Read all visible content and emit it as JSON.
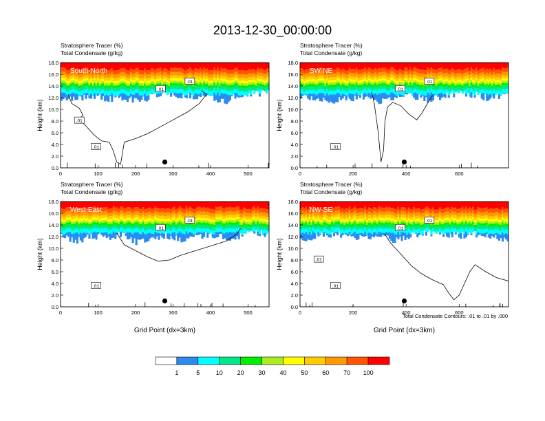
{
  "figure": {
    "title": "2013-12-30_00:00:00",
    "footnote": "Total Condensate Contours: .01 to .01 by .000"
  },
  "chart_data": [
    {
      "type": "heatmap",
      "panel_label": "South-North",
      "subtitle_line1": "Stratosphere Tracer   (%)",
      "subtitle_line2": "Total Condensate   (g/kg)",
      "ylabel": "Height (km)",
      "xlabel": "",
      "xlim": [
        0,
        556
      ],
      "ylim": [
        0,
        18
      ],
      "xticks": [
        0,
        100,
        200,
        300,
        400,
        500
      ],
      "yticks": [
        "0.0",
        "2.0",
        "4.0",
        "6.0",
        "8.0",
        "10.0",
        "12.0",
        "14.0",
        "16.0",
        "18.0"
      ],
      "marker_x": 278,
      "marker_y": 1.0,
      "contour_labels": [
        ".01",
        ".01",
        ".01",
        ".01"
      ],
      "tracer_profile": [
        {
          "x": 0,
          "bottom": 11.8
        },
        {
          "x": 40,
          "bottom": 11.6
        },
        {
          "x": 80,
          "bottom": 12.4
        },
        {
          "x": 120,
          "bottom": 11.8
        },
        {
          "x": 160,
          "bottom": 12.0
        },
        {
          "x": 200,
          "bottom": 11.4
        },
        {
          "x": 240,
          "bottom": 12.2
        },
        {
          "x": 280,
          "bottom": 12.6
        },
        {
          "x": 320,
          "bottom": 12.4
        },
        {
          "x": 360,
          "bottom": 12.2
        },
        {
          "x": 400,
          "bottom": 12.0
        },
        {
          "x": 440,
          "bottom": 11.4
        },
        {
          "x": 480,
          "bottom": 12.6
        },
        {
          "x": 520,
          "bottom": 12.8
        },
        {
          "x": 556,
          "bottom": 12.6
        }
      ],
      "condensate_contour": [
        [
          20,
          12.6
        ],
        [
          30,
          11.0
        ],
        [
          50,
          10.2
        ],
        [
          60,
          9.0
        ],
        [
          50,
          8.4
        ],
        [
          70,
          7.0
        ],
        [
          90,
          5.6
        ],
        [
          110,
          4.6
        ],
        [
          130,
          4.4
        ],
        [
          140,
          3.0
        ],
        [
          150,
          1.0
        ],
        [
          160,
          0.6
        ],
        [
          170,
          4.4
        ],
        [
          200,
          5.0
        ],
        [
          230,
          5.8
        ],
        [
          260,
          6.8
        ],
        [
          300,
          8.2
        ],
        [
          340,
          9.6
        ],
        [
          370,
          11.0
        ],
        [
          390,
          12.6
        ],
        [
          375,
          13.2
        ]
      ]
    },
    {
      "type": "heatmap",
      "panel_label": "SW-NE",
      "subtitle_line1": "Stratosphere Tracer   (%)",
      "subtitle_line2": "Total Condensate   (g/kg)",
      "ylabel": "Height (km)",
      "xlabel": "",
      "xlim": [
        0,
        786
      ],
      "ylim": [
        0,
        18
      ],
      "xticks": [
        0,
        200,
        400,
        600
      ],
      "yticks": [
        "0.0",
        "2.0",
        "4.0",
        "6.0",
        "8.0",
        "10.0",
        "12.0",
        "14.0",
        "16.0",
        "18.0"
      ],
      "marker_x": 393,
      "marker_y": 1.0,
      "contour_labels": [
        ".01",
        ".01",
        ".01"
      ],
      "tracer_profile": [
        {
          "x": 0,
          "bottom": 12.4
        },
        {
          "x": 60,
          "bottom": 12.0
        },
        {
          "x": 120,
          "bottom": 11.4
        },
        {
          "x": 180,
          "bottom": 11.8
        },
        {
          "x": 240,
          "bottom": 12.2
        },
        {
          "x": 300,
          "bottom": 11.4
        },
        {
          "x": 360,
          "bottom": 12.0
        },
        {
          "x": 420,
          "bottom": 12.4
        },
        {
          "x": 480,
          "bottom": 11.6
        },
        {
          "x": 540,
          "bottom": 12.2
        },
        {
          "x": 600,
          "bottom": 12.8
        },
        {
          "x": 660,
          "bottom": 12.4
        },
        {
          "x": 720,
          "bottom": 11.8
        },
        {
          "x": 786,
          "bottom": 13.0
        }
      ],
      "condensate_contour": [
        [
          270,
          13.0
        ],
        [
          280,
          11.0
        ],
        [
          295,
          6.0
        ],
        [
          305,
          1.0
        ],
        [
          315,
          3.0
        ],
        [
          320,
          8.0
        ],
        [
          330,
          10.4
        ],
        [
          350,
          11.2
        ],
        [
          380,
          10.6
        ],
        [
          410,
          9.2
        ],
        [
          440,
          8.2
        ],
        [
          460,
          9.4
        ],
        [
          480,
          11.0
        ],
        [
          500,
          12.4
        ]
      ]
    },
    {
      "type": "heatmap",
      "panel_label": "West-East",
      "subtitle_line1": "Stratosphere Tracer   (%)",
      "subtitle_line2": "Total Condensate   (g/kg)",
      "ylabel": "Height (km)",
      "xlabel": "Grid Point (dx=3km)",
      "xlim": [
        0,
        556
      ],
      "ylim": [
        0,
        18
      ],
      "xticks": [
        0,
        100,
        200,
        300,
        400,
        500
      ],
      "yticks": [
        "0.0",
        "2.0",
        "4.0",
        "6.0",
        "8.0",
        "10.0",
        "12.0",
        "14.0",
        "16.0",
        "18.0"
      ],
      "marker_x": 278,
      "marker_y": 1.0,
      "contour_labels": [
        ".01",
        ".01",
        ".01"
      ],
      "tracer_profile": [
        {
          "x": 0,
          "bottom": 12.0
        },
        {
          "x": 40,
          "bottom": 11.2
        },
        {
          "x": 80,
          "bottom": 12.2
        },
        {
          "x": 120,
          "bottom": 11.8
        },
        {
          "x": 160,
          "bottom": 12.4
        },
        {
          "x": 200,
          "bottom": 11.0
        },
        {
          "x": 240,
          "bottom": 11.6
        },
        {
          "x": 280,
          "bottom": 12.2
        },
        {
          "x": 320,
          "bottom": 11.6
        },
        {
          "x": 360,
          "bottom": 12.0
        },
        {
          "x": 400,
          "bottom": 12.4
        },
        {
          "x": 440,
          "bottom": 11.8
        },
        {
          "x": 480,
          "bottom": 12.2
        },
        {
          "x": 520,
          "bottom": 12.6
        },
        {
          "x": 556,
          "bottom": 12.4
        }
      ],
      "condensate_contour": [
        [
          150,
          12.6
        ],
        [
          170,
          10.6
        ],
        [
          200,
          9.6
        ],
        [
          230,
          8.6
        ],
        [
          260,
          7.8
        ],
        [
          290,
          8.0
        ],
        [
          320,
          8.8
        ],
        [
          360,
          9.6
        ],
        [
          400,
          10.4
        ],
        [
          440,
          11.2
        ],
        [
          470,
          12.4
        ],
        [
          480,
          13.4
        ]
      ]
    },
    {
      "type": "heatmap",
      "panel_label": "NW-SE",
      "subtitle_line1": "Stratosphere Tracer   (%)",
      "subtitle_line2": "Total Condensate   (g/kg)",
      "ylabel": "Height (km)",
      "xlabel": "Grid Point (dx=3km)",
      "xlim": [
        0,
        786
      ],
      "ylim": [
        0,
        18
      ],
      "xticks": [
        0,
        200,
        400,
        600
      ],
      "yticks": [
        "0.0",
        "2.0",
        "4.0",
        "6.0",
        "8.0",
        "10.0",
        "12.0",
        "14.0",
        "16.0",
        "18.0"
      ],
      "marker_x": 393,
      "marker_y": 1.0,
      "contour_labels": [
        ".01",
        ".01",
        ".01",
        ".01"
      ],
      "tracer_profile": [
        {
          "x": 0,
          "bottom": 11.4
        },
        {
          "x": 60,
          "bottom": 12.0
        },
        {
          "x": 120,
          "bottom": 12.4
        },
        {
          "x": 180,
          "bottom": 12.2
        },
        {
          "x": 240,
          "bottom": 11.8
        },
        {
          "x": 300,
          "bottom": 12.0
        },
        {
          "x": 360,
          "bottom": 11.4
        },
        {
          "x": 420,
          "bottom": 12.2
        },
        {
          "x": 480,
          "bottom": 12.6
        },
        {
          "x": 540,
          "bottom": 12.4
        },
        {
          "x": 600,
          "bottom": 12.2
        },
        {
          "x": 660,
          "bottom": 12.4
        },
        {
          "x": 720,
          "bottom": 11.8
        },
        {
          "x": 786,
          "bottom": 11.6
        }
      ],
      "condensate_contour": [
        [
          320,
          12.4
        ],
        [
          340,
          11.0
        ],
        [
          380,
          9.0
        ],
        [
          420,
          7.0
        ],
        [
          460,
          5.6
        ],
        [
          500,
          4.6
        ],
        [
          540,
          3.8
        ],
        [
          560,
          2.4
        ],
        [
          580,
          1.2
        ],
        [
          600,
          2.0
        ],
        [
          620,
          4.0
        ],
        [
          640,
          6.0
        ],
        [
          660,
          7.2
        ],
        [
          700,
          6.0
        ],
        [
          740,
          5.0
        ],
        [
          786,
          4.4
        ]
      ]
    }
  ],
  "colorbar": {
    "labels": [
      "1",
      "5",
      "10",
      "20",
      "30",
      "40",
      "50",
      "60",
      "70",
      "100"
    ],
    "colors": [
      "#ffffff",
      "#2a8af0",
      "#00ffff",
      "#00e68a",
      "#00ee00",
      "#aaee22",
      "#ffff00",
      "#ffcc00",
      "#ff9900",
      "#ff5500",
      "#ff0000"
    ]
  },
  "marker_color": "#000000"
}
